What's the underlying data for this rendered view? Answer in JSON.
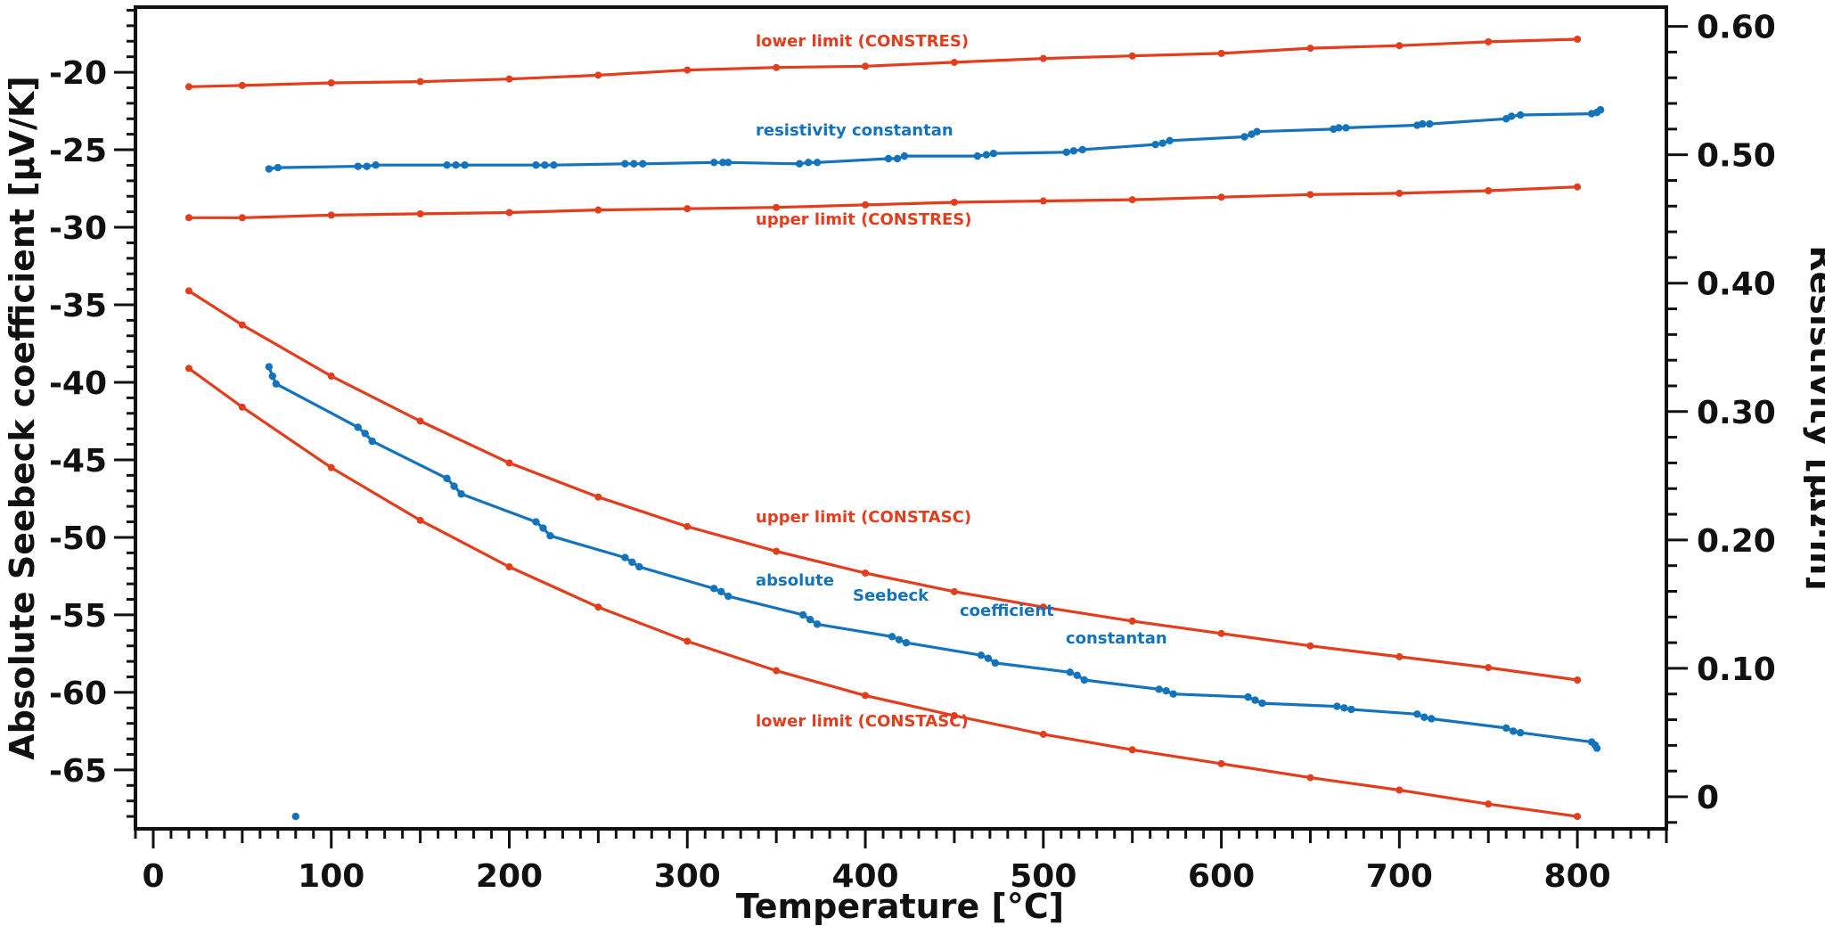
{
  "chart_data": {
    "type": "line",
    "title": "",
    "xlabel": "Temperature [°C]",
    "ylabel": "Absolute Seebeck coefficient [µV/K]",
    "y2label": "Resistivity [µΩ·m]",
    "xlim": [
      -10,
      850
    ],
    "ylim": [
      -68.8,
      -15.8
    ],
    "y2lim": [
      -0.025,
      0.615
    ],
    "x_ticks": [
      "0",
      "100",
      "200",
      "300",
      "400",
      "500",
      "600",
      "700",
      "800"
    ],
    "y_ticks": [
      "-20",
      "-25",
      "-30",
      "-35",
      "-40",
      "-45",
      "-50",
      "-55",
      "-60",
      "-65"
    ],
    "y2_ticks": [
      "0.60",
      "0.50",
      "0.40",
      "0.30",
      "0.20",
      "0.10",
      "0"
    ],
    "grid": false,
    "colors": {
      "limits": "#e23d1c",
      "measured": "#1473bd"
    },
    "series": [
      {
        "name": "lower limit (CONSTRES)",
        "axis": "right",
        "x": [
          20,
          50,
          100,
          150,
          200,
          250,
          300,
          350,
          400,
          450,
          500,
          550,
          600,
          650,
          700,
          750,
          800
        ],
        "y": [
          0.553,
          0.554,
          0.556,
          0.557,
          0.559,
          0.562,
          0.566,
          0.568,
          0.569,
          0.572,
          0.575,
          0.577,
          0.579,
          0.583,
          0.585,
          0.588,
          0.59
        ]
      },
      {
        "name": "resistivity constantan",
        "axis": "right",
        "x": [
          65,
          70,
          115,
          120,
          125,
          165,
          170,
          175,
          215,
          220,
          225,
          265,
          270,
          275,
          315,
          320,
          323,
          363,
          368,
          373,
          413,
          418,
          422,
          463,
          468,
          472,
          513,
          517,
          522,
          563,
          567,
          571,
          613,
          617,
          620,
          663,
          666,
          670,
          710,
          713,
          717,
          760,
          763,
          768,
          808,
          811,
          813
        ],
        "y": [
          0.489,
          0.49,
          0.491,
          0.491,
          0.492,
          0.492,
          0.492,
          0.492,
          0.492,
          0.492,
          0.492,
          0.493,
          0.493,
          0.493,
          0.494,
          0.494,
          0.494,
          0.493,
          0.494,
          0.494,
          0.497,
          0.497,
          0.499,
          0.499,
          0.5,
          0.501,
          0.502,
          0.503,
          0.504,
          0.508,
          0.509,
          0.511,
          0.514,
          0.516,
          0.518,
          0.52,
          0.521,
          0.521,
          0.523,
          0.524,
          0.524,
          0.528,
          0.53,
          0.531,
          0.532,
          0.533,
          0.535
        ]
      },
      {
        "name": "upper limit (CONSTRES)",
        "axis": "right",
        "x": [
          20,
          50,
          100,
          150,
          200,
          250,
          300,
          350,
          400,
          450,
          500,
          550,
          600,
          650,
          700,
          750,
          800
        ],
        "y": [
          0.451,
          0.451,
          0.453,
          0.454,
          0.455,
          0.457,
          0.458,
          0.459,
          0.461,
          0.463,
          0.464,
          0.465,
          0.467,
          0.469,
          0.47,
          0.472,
          0.475
        ]
      },
      {
        "name": "upper limit (CONSTASC)",
        "axis": "left",
        "x": [
          20,
          50,
          100,
          150,
          200,
          250,
          300,
          350,
          400,
          450,
          500,
          550,
          600,
          650,
          700,
          750,
          800
        ],
        "y": [
          -34.1,
          -36.3,
          -39.6,
          -42.5,
          -45.2,
          -47.4,
          -49.3,
          -50.9,
          -52.3,
          -53.5,
          -54.5,
          -55.4,
          -56.2,
          -57.0,
          -57.7,
          -58.4,
          -59.2
        ]
      },
      {
        "name": "absolute Seebeck coefficient constantan",
        "axis": "left",
        "x": [
          65,
          67,
          69,
          115,
          119,
          123,
          165,
          169,
          173,
          215,
          219,
          223,
          265,
          269,
          273,
          315,
          319,
          323,
          365,
          369,
          373,
          415,
          419,
          423,
          465,
          469,
          473,
          515,
          519,
          523,
          565,
          569,
          573,
          615,
          619,
          623,
          665,
          669,
          673,
          710,
          714,
          718,
          760,
          764,
          768,
          808,
          810,
          811
        ],
        "y": [
          -39.0,
          -39.6,
          -40.1,
          -42.9,
          -43.3,
          -43.8,
          -46.2,
          -46.7,
          -47.2,
          -49.0,
          -49.4,
          -49.9,
          -51.3,
          -51.6,
          -51.9,
          -53.3,
          -53.5,
          -53.8,
          -55.0,
          -55.3,
          -55.6,
          -56.4,
          -56.6,
          -56.8,
          -57.6,
          -57.8,
          -58.1,
          -58.7,
          -58.9,
          -59.2,
          -59.8,
          -59.9,
          -60.1,
          -60.3,
          -60.5,
          -60.7,
          -60.9,
          -61.0,
          -61.1,
          -61.4,
          -61.6,
          -61.7,
          -62.3,
          -62.5,
          -62.6,
          -63.2,
          -63.4,
          -63.6
        ]
      },
      {
        "name": "lower limit (CONSTASC)",
        "axis": "left",
        "x": [
          20,
          50,
          100,
          150,
          200,
          250,
          300,
          350,
          400,
          450,
          500,
          550,
          600,
          650,
          700,
          750,
          800
        ],
        "y": [
          -39.1,
          -41.6,
          -45.5,
          -48.9,
          -51.9,
          -54.5,
          -56.7,
          -58.6,
          -60.2,
          -61.5,
          -62.7,
          -63.7,
          -64.6,
          -65.5,
          -66.3,
          -67.2,
          -68.0
        ]
      }
    ],
    "outlier_point": {
      "x": 80,
      "y": -68.0
    },
    "annotations": [
      {
        "text": "lower limit (CONSTRES)",
        "color": "limits"
      },
      {
        "text": "resistivity constantan",
        "color": "measured"
      },
      {
        "text": "upper limit (CONSTRES)",
        "color": "limits"
      },
      {
        "text": "upper limit (CONSTASC)",
        "color": "limits"
      },
      {
        "text": "absolute",
        "color": "measured"
      },
      {
        "text": "Seebeck",
        "color": "measured"
      },
      {
        "text": "coefficient",
        "color": "measured"
      },
      {
        "text": "constantan",
        "color": "measured"
      },
      {
        "text": "lower limit (CONSTASC)",
        "color": "limits"
      }
    ]
  }
}
